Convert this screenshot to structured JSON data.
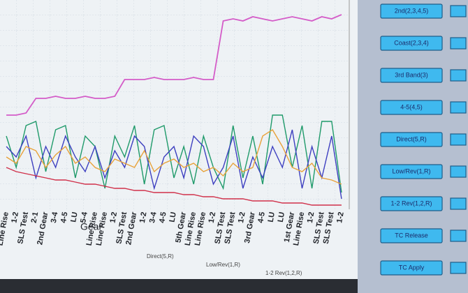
{
  "chart_data": {
    "type": "line",
    "x_label": "Gear",
    "categories": [
      "Line Rise",
      "1-2",
      "SLS Test",
      "2-1",
      "2nd Gear",
      "3-4",
      "4-5",
      "LU",
      "5-4",
      "Line Rise",
      "Line Rise",
      "1-2",
      "SLS Test",
      "2nd Gear",
      "1-2",
      "3-4",
      "4-5",
      "LU",
      "5th Gear",
      "Line Rise",
      "Line Rise",
      "1-2",
      "SLS Test",
      "SLS Test",
      "1-2",
      "3rd Gear",
      "4-5",
      "LU",
      "LU",
      "1st Gear",
      "Line Rise",
      "1-2",
      "SLS Test",
      "SLS Test",
      "1-2"
    ],
    "ylim": [
      0,
      100
    ],
    "series": [
      {
        "name": "2nd(2,3,4,5)",
        "color": "#d45cc8",
        "values": [
          45,
          45,
          46,
          53,
          53,
          54,
          53,
          53,
          54,
          53,
          53,
          54,
          62,
          62,
          62,
          63,
          62,
          62,
          62,
          63,
          62,
          62,
          90,
          91,
          90,
          92,
          91,
          90,
          91,
          92,
          91,
          90,
          92,
          91,
          93
        ]
      },
      {
        "name": "4-5(4,5)",
        "color": "#1f9a6a",
        "values": [
          35,
          20,
          40,
          42,
          18,
          38,
          40,
          15,
          35,
          30,
          10,
          35,
          25,
          40,
          12,
          38,
          40,
          15,
          30,
          12,
          35,
          20,
          10,
          40,
          15,
          35,
          12,
          45,
          45,
          20,
          40,
          10,
          42,
          42,
          8
        ]
      },
      {
        "name": "3rd Band(3)",
        "color": "#3d3fc0",
        "values": [
          30,
          25,
          35,
          15,
          30,
          20,
          35,
          25,
          18,
          30,
          15,
          28,
          20,
          35,
          30,
          10,
          25,
          30,
          15,
          35,
          30,
          12,
          20,
          35,
          10,
          25,
          15,
          30,
          20,
          38,
          10,
          30,
          15,
          35,
          5
        ]
      },
      {
        "name": "Coast(2,3,4)",
        "color": "#e8a23a",
        "values": [
          25,
          22,
          30,
          28,
          20,
          26,
          30,
          22,
          25,
          20,
          18,
          24,
          22,
          20,
          28,
          18,
          22,
          24,
          20,
          22,
          18,
          20,
          16,
          22,
          18,
          20,
          35,
          38,
          30,
          20,
          18,
          22,
          15,
          14,
          12
        ]
      },
      {
        "name": "TC Apply",
        "color": "#d0304a",
        "values": [
          20,
          18,
          17,
          16,
          15,
          14,
          14,
          13,
          12,
          12,
          11,
          10,
          10,
          9,
          9,
          8,
          8,
          8,
          7,
          7,
          6,
          6,
          5,
          5,
          5,
          4,
          4,
          4,
          3,
          3,
          3,
          2,
          2,
          2,
          2
        ]
      }
    ]
  },
  "panel": {
    "buttons": [
      "2nd(2,3,4,5)",
      "Coast(2,3,4)",
      "3rd Band(3)",
      "4-5(4,5)",
      "Direct(5,R)",
      "Low/Rev(1,R)",
      "1-2 Rev(1,2,R)",
      "TC Release",
      "TC Apply"
    ]
  },
  "legend_strip": [
    "Direct(5,R)",
    "Low/Rev(1,R)",
    "1-2 Rev(1,2,R)"
  ]
}
